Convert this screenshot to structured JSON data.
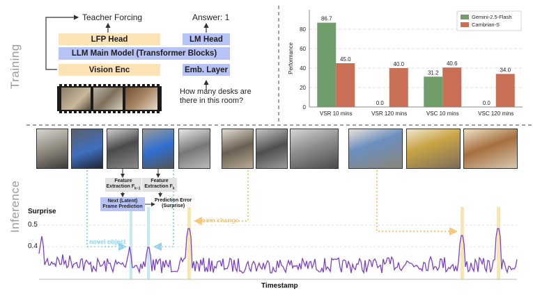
{
  "sections": {
    "training_label": "Training",
    "inference_label": "Inference"
  },
  "training_diagram": {
    "teacher_forcing": "Teacher Forcing",
    "answer": "Answer: 1",
    "lfp_head": "LFP Head",
    "lm_head": "LM Head",
    "main_model": "LLM Main Model (Transformer Blocks)",
    "vision_enc": "Vision Enc",
    "emb_layer": "Emb. Layer",
    "question_line1": "How many desks are",
    "question_line2": "there in this room?"
  },
  "chart_data": {
    "type": "bar",
    "categories": [
      "VSR 10 mins",
      "VSR 120 mins",
      "VSC 10 mins",
      "VSC 120 mins"
    ],
    "series": [
      {
        "name": "Gemini-2.5-Flash",
        "color": "#6f9e6b",
        "values": [
          86.7,
          0.0,
          31.2,
          0.0
        ]
      },
      {
        "name": "Cambrian-S",
        "color": "#c96f56",
        "values": [
          45.0,
          40.0,
          40.6,
          34.0
        ]
      }
    ],
    "ylabel": "Performance",
    "ylim": [
      0,
      100
    ],
    "yticks": [
      0,
      20,
      40,
      60,
      80
    ],
    "value_labels": [
      "86.7",
      "0.0",
      "31.2",
      "0.0",
      "45.0",
      "40.0",
      "40.6",
      "34.0"
    ],
    "grid": true,
    "legend": "top-right"
  },
  "inference_diagram": {
    "feature_extraction_prev_line1": "Feature",
    "feature_extraction_prev_line2": "Extraction F",
    "feature_extraction_prev_sub": "k−1",
    "feature_extraction_cur_line1": "Feature",
    "feature_extraction_cur_line2": "Extraction F",
    "feature_extraction_cur_sub": "k",
    "next_frame_line1": "Next (Latent)",
    "next_frame_line2": "Frame Prediction",
    "pred_error_line1": "Prediction Error",
    "pred_error_line2": "(Surprise)",
    "room_change": "room change",
    "novel_object": "novel object",
    "y_title": "Surprise",
    "y_ticks": [
      "0.5",
      "0.4"
    ],
    "x_title": "Timestamp",
    "highlight_color": "#fbe3a0",
    "line_color": "#7b3fd1",
    "blue_annot_color": "#8fd3f0",
    "orange_annot_color": "#f6c878"
  }
}
